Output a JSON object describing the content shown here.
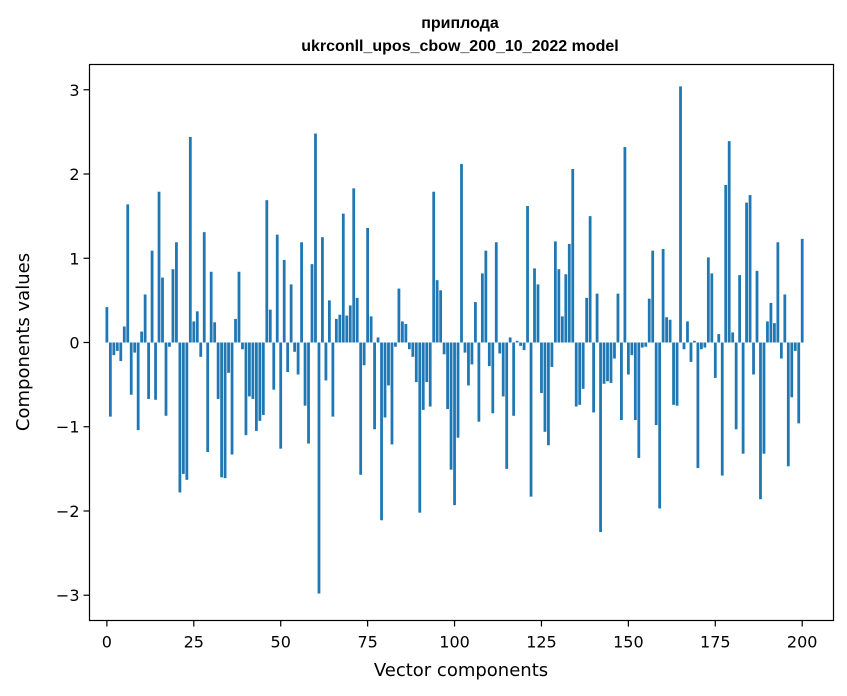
{
  "chart_data": {
    "type": "bar",
    "title": "приплода",
    "subtitle": "ukrconll_upos_cbow_200_10_2022 model",
    "xlabel": "Vector components",
    "ylabel": "Components values",
    "xlim": [
      -5,
      209
    ],
    "ylim": [
      -3.3,
      3.3
    ],
    "xticks": [
      0,
      25,
      50,
      75,
      100,
      125,
      150,
      175,
      200
    ],
    "yticks": [
      -3,
      -2,
      -1,
      0,
      1,
      2,
      3
    ],
    "xtick_labels": [
      "0",
      "25",
      "50",
      "75",
      "100",
      "125",
      "150",
      "175",
      "200"
    ],
    "ytick_labels": [
      "−3",
      "−2",
      "−1",
      "0",
      "1",
      "2",
      "3"
    ],
    "bar_color": "#1f77b4",
    "grid": false,
    "values": [
      0.42,
      -0.88,
      -0.15,
      -0.1,
      -0.22,
      0.19,
      1.64,
      -0.62,
      -0.12,
      -1.04,
      0.13,
      0.57,
      -0.67,
      1.09,
      -0.68,
      1.79,
      0.77,
      -0.87,
      -0.05,
      0.87,
      1.19,
      -1.78,
      -1.56,
      -1.63,
      2.44,
      0.25,
      0.37,
      -0.17,
      1.31,
      -1.3,
      0.84,
      0.24,
      -0.67,
      -1.6,
      -1.61,
      -0.36,
      -1.33,
      0.28,
      0.84,
      -0.08,
      -1.1,
      -0.64,
      -0.67,
      -1.05,
      -0.93,
      -0.86,
      1.69,
      0.39,
      -0.56,
      1.28,
      -1.26,
      0.98,
      -0.35,
      0.69,
      -0.11,
      -0.38,
      1.19,
      -0.75,
      -1.2,
      0.93,
      2.48,
      -2.98,
      1.25,
      -0.45,
      0.5,
      -0.88,
      0.28,
      0.33,
      1.53,
      0.32,
      0.44,
      1.83,
      0.53,
      -1.57,
      -0.27,
      1.36,
      0.31,
      -1.03,
      0.06,
      -2.11,
      -0.89,
      -0.51,
      -1.21,
      -0.05,
      0.64,
      0.25,
      0.22,
      -0.08,
      -0.17,
      -0.47,
      -2.02,
      -0.8,
      -0.47,
      -0.76,
      1.79,
      0.74,
      0.62,
      -0.14,
      -0.79,
      -1.51,
      -1.93,
      -1.13,
      2.12,
      -0.12,
      -0.51,
      -0.26,
      0.48,
      -0.94,
      0.82,
      1.09,
      -0.28,
      -0.84,
      1.19,
      -0.13,
      -0.64,
      -1.5,
      0.06,
      -0.87,
      0.02,
      -0.04,
      -0.09,
      1.62,
      -1.83,
      0.88,
      0.69,
      -0.6,
      -1.06,
      -1.22,
      -0.29,
      1.2,
      0.87,
      0.31,
      0.81,
      1.17,
      2.06,
      -0.76,
      -0.74,
      -0.55,
      0.53,
      1.5,
      -0.83,
      0.58,
      -2.25,
      -0.49,
      -0.46,
      -0.48,
      -0.19,
      0.58,
      -0.92,
      2.32,
      -0.38,
      -0.15,
      -0.92,
      -1.37,
      -0.06,
      -0.05,
      0.52,
      1.09,
      -0.98,
      -1.97,
      1.11,
      0.3,
      0.27,
      -0.74,
      -0.75,
      3.04,
      -0.08,
      0.25,
      -0.23,
      0.02,
      -1.49,
      -0.08,
      -0.06,
      1.01,
      0.82,
      -0.42,
      0.1,
      -1.58,
      1.87,
      2.39,
      0.12,
      -1.03,
      0.8,
      -1.32,
      1.66,
      1.75,
      -0.38,
      0.85,
      -1.86,
      -1.32,
      0.25,
      0.47,
      0.23,
      1.19,
      -0.19,
      0.57,
      -1.47,
      -0.65,
      -0.1,
      -0.96,
      1.23
    ]
  }
}
